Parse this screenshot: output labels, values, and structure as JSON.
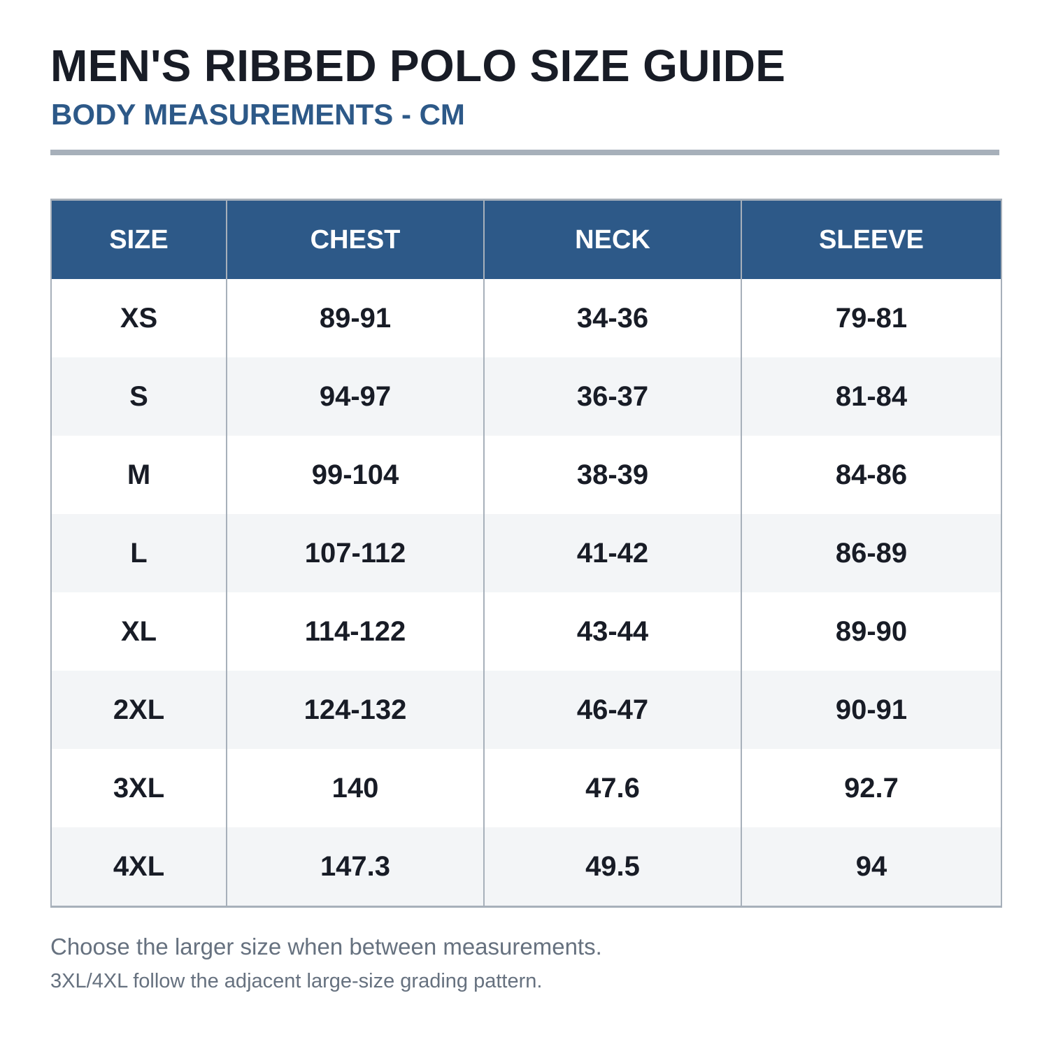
{
  "header": {
    "title": "MEN'S RIBBED POLO SIZE GUIDE",
    "subtitle": "BODY MEASUREMENTS - CM"
  },
  "table": {
    "columns": [
      "SIZE",
      "CHEST",
      "NECK",
      "SLEEVE"
    ],
    "rows": [
      [
        "XS",
        "89-91",
        "34-36",
        "79-81"
      ],
      [
        "S",
        "94-97",
        "36-37",
        "81-84"
      ],
      [
        "M",
        "99-104",
        "38-39",
        "84-86"
      ],
      [
        "L",
        "107-112",
        "41-42",
        "86-89"
      ],
      [
        "XL",
        "114-122",
        "43-44",
        "89-90"
      ],
      [
        "2XL",
        "124-132",
        "46-47",
        "90-91"
      ],
      [
        "3XL",
        "140",
        "47.6",
        "92.7"
      ],
      [
        "4XL",
        "147.3",
        "49.5",
        "94"
      ]
    ]
  },
  "notes": {
    "line1": "Choose the larger size when between measurements.",
    "line2": "3XL/4XL follow the adjacent large-size grading pattern."
  },
  "colors": {
    "header_bg": "#2d5988",
    "title_text": "#181c26",
    "subtitle_text": "#2d5988",
    "divider": "#a7b0ba",
    "alt_row": "#f3f5f7",
    "note_text": "#66717f"
  }
}
